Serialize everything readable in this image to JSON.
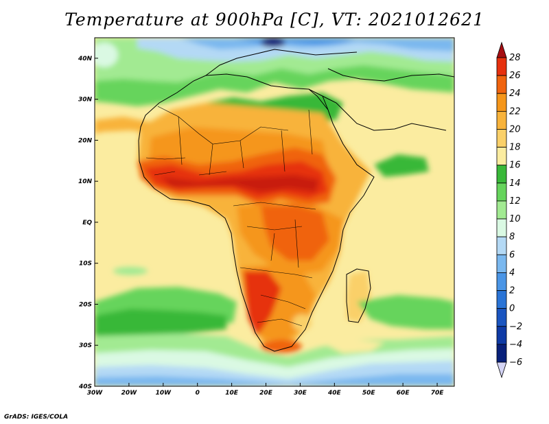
{
  "title": "Temperature at 900hPa [C], VT: 2021012621",
  "credit": "GrADS: IGES/COLA",
  "map": {
    "lon_range": [
      -30,
      75
    ],
    "lat_range": [
      -40,
      45
    ],
    "lon_ticks": [
      {
        "value": -30,
        "label": "30W"
      },
      {
        "value": -20,
        "label": "20W"
      },
      {
        "value": -10,
        "label": "10W"
      },
      {
        "value": 0,
        "label": "0"
      },
      {
        "value": 10,
        "label": "10E"
      },
      {
        "value": 20,
        "label": "20E"
      },
      {
        "value": 30,
        "label": "30E"
      },
      {
        "value": 40,
        "label": "40E"
      },
      {
        "value": 50,
        "label": "50E"
      },
      {
        "value": 60,
        "label": "60E"
      },
      {
        "value": 70,
        "label": "70E"
      }
    ],
    "lat_ticks": [
      {
        "value": 40,
        "label": "40N"
      },
      {
        "value": 30,
        "label": "30N"
      },
      {
        "value": 20,
        "label": "20N"
      },
      {
        "value": 10,
        "label": "10N"
      },
      {
        "value": 0,
        "label": "EQ"
      },
      {
        "value": -10,
        "label": "10S"
      },
      {
        "value": -20,
        "label": "20S"
      },
      {
        "value": -30,
        "label": "30S"
      },
      {
        "value": -40,
        "label": "40S"
      }
    ]
  },
  "colorbar": {
    "levels": [
      {
        "label": "28",
        "color": "#a50e12"
      },
      {
        "label": "26",
        "color": "#e6300e"
      },
      {
        "label": "24",
        "color": "#f0640f"
      },
      {
        "label": "22",
        "color": "#f5961a"
      },
      {
        "label": "20",
        "color": "#f8b33b"
      },
      {
        "label": "18",
        "color": "#fad069"
      },
      {
        "label": "16",
        "color": "#fbeca0"
      },
      {
        "label": "14",
        "color": "#39b839"
      },
      {
        "label": "12",
        "color": "#66d45c"
      },
      {
        "label": "10",
        "color": "#a2ea92"
      },
      {
        "label": "8",
        "color": "#daf9e3"
      },
      {
        "label": "6",
        "color": "#b4d9f5"
      },
      {
        "label": "4",
        "color": "#7ab8ef"
      },
      {
        "label": "2",
        "color": "#4a95e6"
      },
      {
        "label": "0",
        "color": "#2a74d6"
      },
      {
        "label": "−2",
        "color": "#1a55c0"
      },
      {
        "label": "−4",
        "color": "#0e3aa5"
      },
      {
        "label": "−6",
        "color": "#08207a"
      }
    ],
    "bottom_extend_color": "#d4d4f5"
  },
  "colors": {
    "ocean_warm": "#fbeca0",
    "land_warm": "#f8b33b",
    "hot": "#e6300e",
    "very_hot": "#c81e0c",
    "green_dark": "#39b839",
    "green_mid": "#66d45c",
    "green_light": "#a2ea92",
    "pale": "#daf9e3",
    "blue_light": "#b4d9f5",
    "blue_mid": "#7ab8ef",
    "blue_dark": "#2a74d6",
    "navy": "#08207a"
  }
}
